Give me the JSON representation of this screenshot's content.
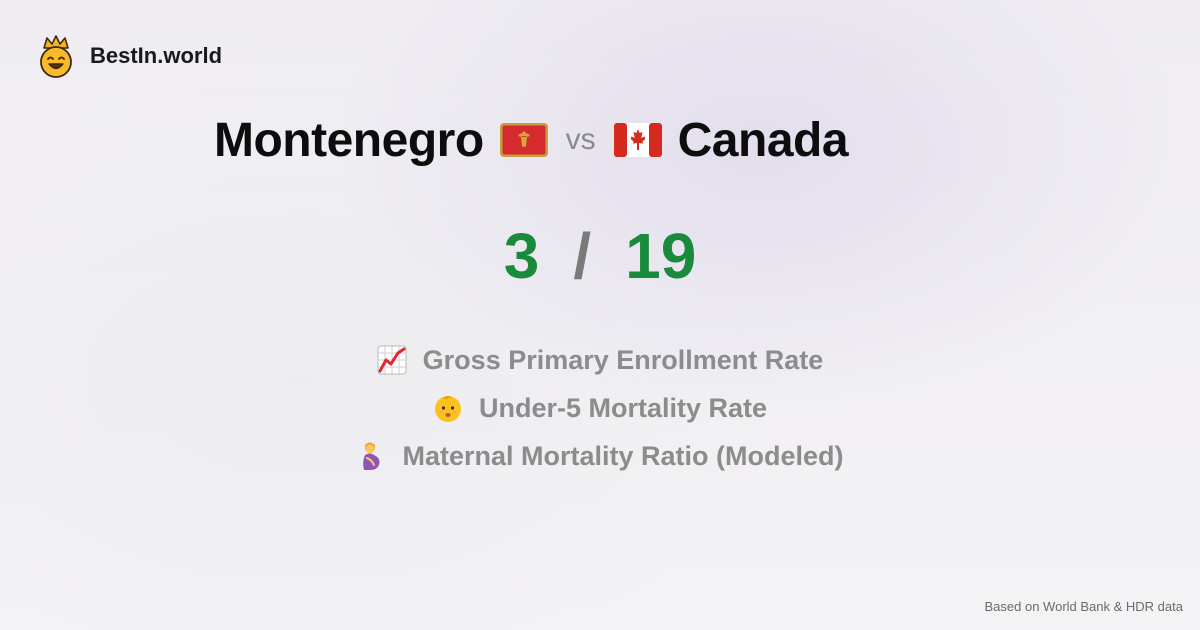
{
  "brand": {
    "name": "BestIn.world",
    "logo_icon": "crowned-smiley-icon"
  },
  "comparison": {
    "left_country": "Montenegro",
    "left_flag": "montenegro-flag-icon",
    "vs_label": "vs",
    "right_country": "Canada",
    "right_flag": "canada-flag-icon"
  },
  "score": {
    "left": "3",
    "separator": "/",
    "right": "19"
  },
  "metrics": [
    {
      "icon": "chart-increasing-icon",
      "label": "Gross Primary Enrollment Rate"
    },
    {
      "icon": "baby-face-icon",
      "label": "Under-5 Mortality Rate"
    },
    {
      "icon": "pregnant-woman-icon",
      "label": "Maternal Mortality Ratio (Modeled)"
    }
  ],
  "footer": {
    "source": "Based on World Bank & HDR data"
  },
  "colors": {
    "score_green": "#1a8a3c",
    "label_gray": "#8c8c8c"
  }
}
